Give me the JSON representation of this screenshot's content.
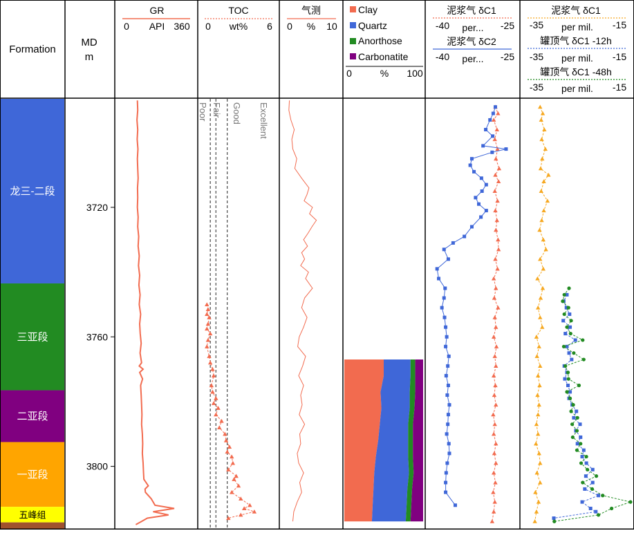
{
  "colors": {
    "gr": "#f26b4f",
    "clay": "#f26b4f",
    "quartz": "#3f67d8",
    "anorthose": "#228b22",
    "carbonatite": "#800080",
    "mud_c1": "#f6a821",
    "c1_12h": "#3f67d8",
    "c1_48h": "#228b22",
    "tick": "#555555"
  },
  "header": {
    "formation": "Formation",
    "md": "MD",
    "md_unit": "m",
    "gr": {
      "title": "GR",
      "min": "0",
      "unit": "API",
      "max": "360"
    },
    "toc": {
      "title": "TOC",
      "min": "0",
      "unit": "wt%",
      "max": "6"
    },
    "gas": {
      "title": "气测",
      "min": "0",
      "unit": "%",
      "max": "10"
    },
    "mineral": {
      "legend": [
        "Clay",
        "Quartz",
        "Anorthose",
        "Carbonatite"
      ],
      "min": "0",
      "unit": "%",
      "max": "100"
    },
    "iso1": {
      "t1": "泥浆气 δC1",
      "t1_min": "-40",
      "t1_unit": "per...",
      "t1_max": "-25",
      "t2": "泥浆气 δC2",
      "t2_min": "-40",
      "t2_unit": "per...",
      "t2_max": "-25"
    },
    "iso2": {
      "t1": "泥浆气 δC1",
      "t1_min": "-35",
      "t1_unit": "per mil.",
      "t1_max": "-15",
      "t2": "罐顶气 δC1 -12h",
      "t2_min": "-35",
      "t2_unit": "per mil.",
      "t2_max": "-15",
      "t3": "罐顶气 δC1 -48h",
      "t3_min": "-35",
      "t3_unit": "per mil.",
      "t3_max": "-15"
    }
  },
  "formations": [
    {
      "name": "龙三-二段",
      "top": 3686.5,
      "base": 3743.5,
      "color": "#3f67d8"
    },
    {
      "name": "三亚段",
      "top": 3743.5,
      "base": 3776.5,
      "color": "#228b22"
    },
    {
      "name": "二亚段",
      "top": 3776.5,
      "base": 3792.5,
      "color": "#800080"
    },
    {
      "name": "一亚段",
      "top": 3792.5,
      "base": 3812.5,
      "color": "#ffa500"
    },
    {
      "name": "五峰组",
      "top": 3812.5,
      "base": 3817.3,
      "color": "#ffff00"
    },
    {
      "name": "",
      "top": 3817.3,
      "base": 3819.3,
      "color": "#a0522d"
    }
  ],
  "depth_ticks": [
    "3720",
    "3760",
    "3800"
  ],
  "toc_zones": [
    "Poor",
    "Fair",
    "Good",
    "Excellent"
  ],
  "chart_data": {
    "type": "line",
    "y_axis": "MD (m)",
    "depth_range": [
      3686.5,
      3819.3
    ],
    "toc_thresholds": [
      0.5,
      1.0,
      2.0
    ],
    "gr": {
      "xlim": [
        0,
        360
      ],
      "depth": [
        3687,
        3690,
        3693,
        3696,
        3699,
        3702,
        3705,
        3708,
        3711,
        3714,
        3717,
        3720,
        3723,
        3726,
        3729,
        3732,
        3735,
        3738,
        3741,
        3744,
        3747,
        3750,
        3753,
        3756,
        3759,
        3762,
        3765,
        3768,
        3769,
        3770,
        3771,
        3773,
        3775,
        3778,
        3781,
        3784,
        3787,
        3790,
        3793,
        3796,
        3799,
        3802,
        3804,
        3806,
        3807,
        3808,
        3810,
        3812,
        3813,
        3814,
        3815,
        3816,
        3817,
        3818
      ],
      "values": [
        78,
        80,
        76,
        80,
        77,
        81,
        78,
        80,
        82,
        79,
        80,
        78,
        82,
        80,
        85,
        82,
        88,
        84,
        90,
        86,
        92,
        88,
        95,
        90,
        93,
        98,
        92,
        100,
        88,
        108,
        90,
        105,
        95,
        98,
        100,
        102,
        100,
        104,
        106,
        104,
        108,
        110,
        112,
        135,
        118,
        120,
        150,
        170,
        270,
        160,
        240,
        130,
        100,
        70
      ]
    },
    "toc": {
      "xlim": [
        0,
        6
      ],
      "depth": [
        3750,
        3751.5,
        3753,
        3754,
        3756,
        3757.5,
        3759,
        3761,
        3763,
        3766,
        3768,
        3770,
        3772,
        3775,
        3777,
        3779,
        3780.5,
        3782,
        3784,
        3786,
        3788,
        3790,
        3792,
        3794,
        3795.5,
        3797,
        3799,
        3801,
        3803,
        3804,
        3806,
        3808,
        3810,
        3812,
        3813,
        3814,
        3815,
        3816
      ],
      "values": [
        0.2,
        0.3,
        0.2,
        0.4,
        0.3,
        0.2,
        0.5,
        0.3,
        0.2,
        0.4,
        0.5,
        0.7,
        0.8,
        0.6,
        0.7,
        1.0,
        0.8,
        1.2,
        1.0,
        1.5,
        1.3,
        1.8,
        1.9,
        2.2,
        2.0,
        2.4,
        2.5,
        2.1,
        2.8,
        2.6,
        3.0,
        2.4,
        3.2,
        4.0,
        3.5,
        4.4,
        3.2,
        2.1
      ]
    },
    "gas": {
      "xlim": [
        0,
        10
      ],
      "depth": [
        3687,
        3690,
        3693,
        3696,
        3699,
        3702,
        3705,
        3708,
        3711,
        3714,
        3716,
        3718,
        3720,
        3722,
        3724,
        3726,
        3728,
        3730,
        3732,
        3734,
        3736,
        3738,
        3740,
        3742,
        3745,
        3748,
        3751,
        3754,
        3757,
        3760,
        3763,
        3766,
        3769,
        3772,
        3775,
        3778,
        3781,
        3784,
        3787,
        3790,
        3793,
        3796,
        3799,
        3802,
        3805,
        3808,
        3811,
        3814,
        3817
      ],
      "values": [
        0.5,
        0.4,
        0.8,
        1.5,
        1.0,
        1.2,
        2.0,
        1.6,
        3.0,
        4.5,
        4.1,
        3.5,
        5.2,
        4.6,
        6.0,
        5.1,
        4.3,
        3.4,
        4.2,
        3.0,
        3.6,
        2.8,
        4.4,
        3.8,
        5.2,
        3.6,
        3.0,
        4.1,
        3.4,
        2.5,
        2.2,
        3.8,
        3.2,
        2.4,
        3.4,
        2.8,
        3.1,
        2.5,
        3.6,
        2.6,
        2.8,
        2.1,
        2.4,
        3.4,
        2.6,
        3.0,
        2.1,
        1.4,
        1.2
      ]
    },
    "mineral": {
      "type": "area",
      "depth": [
        3767,
        3772,
        3777,
        3782,
        3787,
        3792,
        3797,
        3802,
        3807,
        3812,
        3817
      ],
      "series": [
        {
          "name": "Clay",
          "values": [
            50,
            50,
            46,
            47,
            45,
            43,
            40,
            38,
            37,
            36,
            35
          ]
        },
        {
          "name": "Quartz",
          "values": [
            34,
            34,
            37,
            36,
            36,
            38,
            41,
            44,
            43,
            43,
            43
          ]
        },
        {
          "name": "Anorthose",
          "values": [
            6,
            6,
            7,
            6,
            6,
            6,
            6,
            6,
            6,
            6,
            6
          ]
        },
        {
          "name": "Carbonatite",
          "values": [
            10,
            10,
            10,
            11,
            13,
            13,
            13,
            12,
            14,
            15,
            16
          ]
        }
      ]
    },
    "mud_c1_a": {
      "xlim": [
        -40,
        -25
      ],
      "depth": [
        3689,
        3691,
        3693,
        3696,
        3699,
        3702,
        3705,
        3708,
        3710,
        3712,
        3715,
        3718,
        3721,
        3724,
        3727,
        3730,
        3733,
        3736,
        3739,
        3742,
        3745,
        3748,
        3751,
        3754,
        3757,
        3760,
        3763,
        3766,
        3769,
        3772,
        3775,
        3778,
        3781,
        3784,
        3787,
        3790,
        3793,
        3796,
        3799,
        3802,
        3805,
        3808,
        3811,
        3814,
        3817
      ],
      "values": [
        -28.3,
        -27.8,
        -28.6,
        -28.0,
        -28.4,
        -27.9,
        -28.2,
        -27.6,
        -28.3,
        -27.7,
        -28.4,
        -27.9,
        -28.3,
        -28.0,
        -28.2,
        -27.8,
        -27.7,
        -28.3,
        -27.9,
        -28.6,
        -28.2,
        -28.5,
        -27.8,
        -28.4,
        -28.2,
        -28.6,
        -28.1,
        -28.4,
        -28.2,
        -28.6,
        -28.3,
        -28.5,
        -28.2,
        -28.7,
        -28.4,
        -28.6,
        -28.2,
        -28.5,
        -28.2,
        -28.6,
        -28.3,
        -28.7,
        -28.4,
        -28.6,
        -28.9
      ]
    },
    "mud_c2": {
      "xlim": [
        -40,
        -25
      ],
      "depth": [
        3689,
        3691,
        3693,
        3696,
        3698,
        3701,
        3702,
        3703,
        3705,
        3707,
        3709,
        3711,
        3713,
        3715,
        3717,
        3719,
        3721,
        3723,
        3726,
        3729,
        3731,
        3733,
        3736,
        3739,
        3742,
        3745,
        3748,
        3751,
        3754,
        3757,
        3760,
        3763,
        3766,
        3769,
        3772,
        3775,
        3778,
        3781,
        3784,
        3787,
        3790,
        3793,
        3796,
        3799,
        3802,
        3805,
        3808,
        3812
      ],
      "values": [
        -28.3,
        -28.7,
        -29.3,
        -30.1,
        -28.8,
        -30.6,
        -26.3,
        -28.9,
        -32.7,
        -33.0,
        -32.3,
        -30.9,
        -30.0,
        -30.8,
        -32.0,
        -31.4,
        -30.0,
        -31.0,
        -32.7,
        -34.1,
        -36.2,
        -37.9,
        -37.1,
        -39.2,
        -38.9,
        -37.7,
        -37.9,
        -38.3,
        -37.8,
        -37.6,
        -37.4,
        -37.6,
        -37.0,
        -37.2,
        -37.5,
        -37.1,
        -37.3,
        -36.9,
        -37.1,
        -37.2,
        -37.4,
        -37.0,
        -36.9,
        -37.3,
        -37.5,
        -37.6,
        -37.6,
        -35.8
      ]
    },
    "mud_c1_b": {
      "xlim": [
        -35,
        -15
      ],
      "depth": [
        3689,
        3691,
        3693,
        3696,
        3699,
        3702,
        3705,
        3708,
        3710,
        3712,
        3715,
        3718,
        3721,
        3724,
        3727,
        3730,
        3733,
        3736,
        3739,
        3742,
        3745,
        3748,
        3751,
        3754,
        3757,
        3760,
        3763,
        3766,
        3769,
        3772,
        3775,
        3778,
        3781,
        3784,
        3787,
        3790,
        3793,
        3796,
        3799,
        3802,
        3805,
        3808,
        3811,
        3814,
        3817
      ],
      "values": [
        -32.6,
        -32.1,
        -32.4,
        -31.8,
        -32.3,
        -31.6,
        -32.2,
        -32.5,
        -31.0,
        -31.9,
        -32.4,
        -31.2,
        -31.9,
        -32.3,
        -32.7,
        -32.0,
        -31.5,
        -32.6,
        -32.0,
        -33.1,
        -32.1,
        -32.5,
        -33.0,
        -32.6,
        -32.2,
        -33.3,
        -32.8,
        -33.2,
        -32.6,
        -33.0,
        -32.7,
        -33.1,
        -32.8,
        -33.0,
        -33.3,
        -33.0,
        -33.4,
        -32.8,
        -32.6,
        -33.2,
        -32.6,
        -33.5,
        -32.9,
        -33.3,
        -33.6
      ]
    },
    "c1_12h": {
      "xlim": [
        -35,
        -15
      ],
      "depth": [
        3747,
        3749,
        3751,
        3753,
        3755,
        3757,
        3759,
        3761,
        3763,
        3765,
        3767,
        3769,
        3771,
        3773,
        3775,
        3777,
        3779,
        3781,
        3783,
        3785,
        3787,
        3789,
        3791,
        3793,
        3795,
        3797,
        3799,
        3801,
        3803,
        3805,
        3807,
        3809,
        3811,
        3813,
        3814,
        3816
      ],
      "values": [
        -27.5,
        -28.1,
        -27.6,
        -27.0,
        -28.2,
        -26.9,
        -27.8,
        -25.9,
        -27.5,
        -27.1,
        -26.6,
        -28.0,
        -27.5,
        -27.9,
        -27.3,
        -26.9,
        -27.1,
        -26.5,
        -25.7,
        -26.2,
        -25.0,
        -25.8,
        -24.9,
        -25.5,
        -24.3,
        -24.6,
        -23.8,
        -22.6,
        -23.9,
        -22.6,
        -24.1,
        -21.5,
        -24.6,
        -23.0,
        -22.0,
        -30.0
      ]
    },
    "c1_48h": {
      "xlim": [
        -35,
        -15
      ],
      "depth": [
        3745,
        3747,
        3749,
        3751,
        3753,
        3755,
        3757,
        3759,
        3761,
        3763,
        3765,
        3767,
        3769,
        3771,
        3773,
        3775,
        3777,
        3779,
        3781,
        3783,
        3785,
        3787,
        3789,
        3791,
        3793,
        3795,
        3797,
        3799,
        3801,
        3803,
        3805,
        3807,
        3809,
        3811,
        3813,
        3815,
        3817
      ],
      "values": [
        -27.1,
        -28.0,
        -28.3,
        -27.2,
        -28.0,
        -26.7,
        -27.5,
        -26.8,
        -24.5,
        -28.1,
        -26.2,
        -24.3,
        -27.8,
        -27.3,
        -27.2,
        -25.2,
        -27.5,
        -26.9,
        -26.3,
        -26.7,
        -25.5,
        -26.5,
        -25.6,
        -26.4,
        -24.9,
        -25.6,
        -23.8,
        -24.8,
        -23.6,
        -21.9,
        -24.5,
        -22.7,
        -20.7,
        -15.4,
        -19.0,
        -21.5,
        -29.9
      ]
    }
  }
}
